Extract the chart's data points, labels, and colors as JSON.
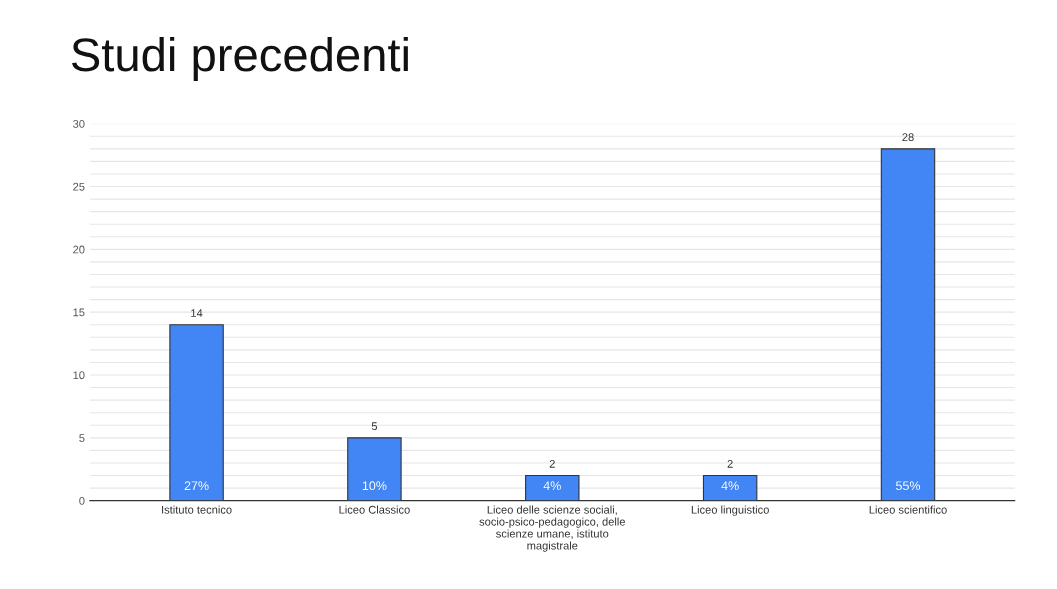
{
  "chart_data": {
    "type": "bar",
    "title": "Studi precedenti",
    "categories": [
      "Istituto tecnico",
      "Liceo Classico",
      "Liceo delle scienze sociali,\nsocio-psico-pedagogico, delle\nscienze umane, istituto\nmagistrale",
      "Liceo linguistico",
      "Liceo scientifico"
    ],
    "values": [
      14,
      5,
      2,
      2,
      28
    ],
    "color": "#4285f4",
    "data_labels": true,
    "annotations": [
      "27%",
      "10%",
      "4%",
      "4%",
      "55%"
    ],
    "ylim": [
      0,
      30
    ],
    "yticks": [
      0,
      {
        "value": 1,
        "label": null
      },
      {
        "value": 2,
        "label": null
      },
      {
        "value": 3,
        "label": null
      },
      {
        "value": 4,
        "label": null
      },
      5,
      {
        "value": 6,
        "label": null
      },
      {
        "value": 7,
        "label": null
      },
      {
        "value": 8,
        "label": null
      },
      {
        "value": 9,
        "label": null
      },
      10,
      {
        "value": 11,
        "label": null
      },
      {
        "value": 12,
        "label": null
      },
      {
        "value": 13,
        "label": null
      },
      {
        "value": 14,
        "label": null
      },
      15,
      {
        "value": 16,
        "label": null
      },
      {
        "value": 17,
        "label": null
      },
      {
        "value": 18,
        "label": null
      },
      {
        "value": 19,
        "label": null
      },
      20,
      {
        "value": 21,
        "label": null
      },
      {
        "value": 22,
        "label": null
      },
      {
        "value": 23,
        "label": null
      },
      {
        "value": 24,
        "label": null
      },
      25,
      {
        "value": 26,
        "label": null
      },
      {
        "value": 27,
        "label": null
      },
      {
        "value": 28,
        "label": null
      },
      {
        "value": 29,
        "label": null
      },
      30
    ],
    "grid": "y",
    "legend": false
  }
}
